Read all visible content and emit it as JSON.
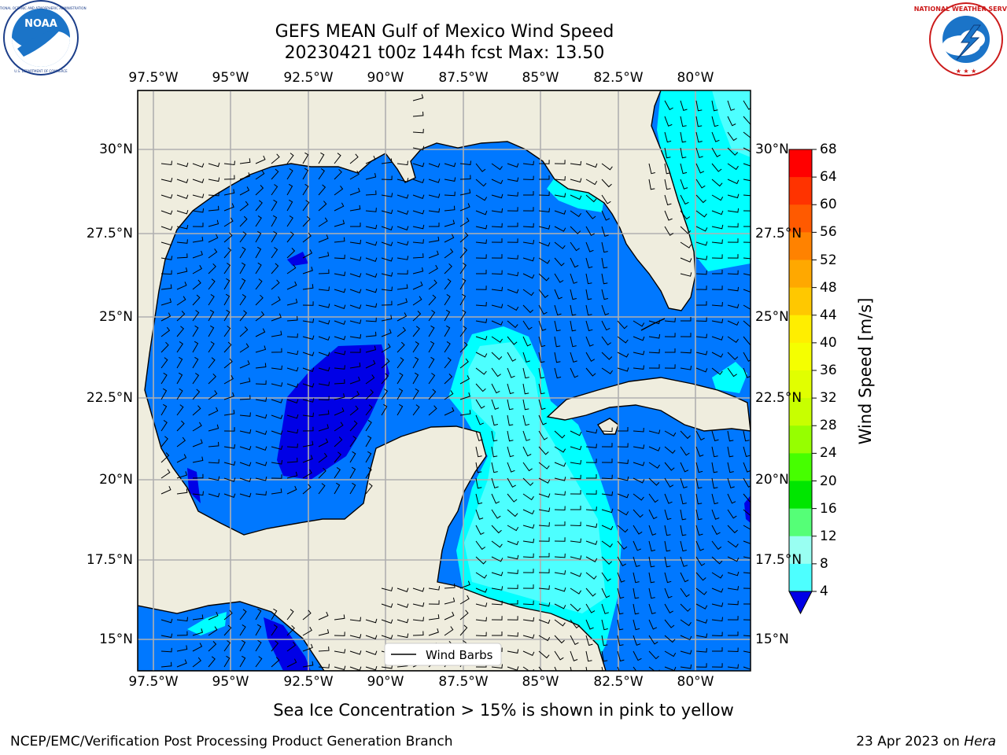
{
  "header": {
    "title_line1": "GEFS MEAN Gulf of Mexico Wind Speed",
    "title_line2": "20230421 t00z 144h fcst   Max: 13.50"
  },
  "logos": {
    "left": {
      "name": "NOAA",
      "ring_text": "NATIONAL OCEANIC AND ATMOSPHERIC ADMINISTRATION · U.S. DEPARTMENT OF COMMERCE"
    },
    "right": {
      "ring_text": "NATIONAL WEATHER SERVICE"
    }
  },
  "map": {
    "lon_labels": [
      "97.5°W",
      "95°W",
      "92.5°W",
      "90°W",
      "87.5°W",
      "85°W",
      "82.5°W",
      "80°W"
    ],
    "lat_labels": [
      "30°N",
      "27.5°N",
      "25°N",
      "22.5°N",
      "20°N",
      "17.5°N",
      "15°N"
    ],
    "legend_label": "Wind Barbs",
    "colors": {
      "land": "#efedde",
      "ocean_4_8": "#0078ff",
      "ocean_below_4": "#0000e6",
      "ocean_8_12": "#00ffff",
      "ocean_12_16": "#4dffff",
      "grid": "#b0b0b0"
    }
  },
  "colorbar": {
    "title": "Wind Speed [m/s]",
    "ticks": [
      "68",
      "64",
      "60",
      "56",
      "52",
      "48",
      "44",
      "40",
      "36",
      "32",
      "28",
      "24",
      "20",
      "16",
      "12",
      "8",
      "4"
    ],
    "colors": [
      "#ff0000",
      "#ff3300",
      "#ff5a00",
      "#ff8200",
      "#ffa800",
      "#ffc800",
      "#ffee00",
      "#f5ff00",
      "#e1ff00",
      "#c8ff00",
      "#96ff00",
      "#46ff00",
      "#00e600",
      "#55ff77",
      "#99fff2",
      "#4dffff",
      "#00ffff",
      "#0078ff"
    ],
    "extend_color": "#0000e6"
  },
  "note": "Sea Ice Concentration > 15% is shown in pink to yellow",
  "footer": {
    "left": "NCEP/EMC/Verification Post Processing Product Generation Branch",
    "right_prefix": "23 Apr 2023 on ",
    "right_machine": "Hera"
  }
}
